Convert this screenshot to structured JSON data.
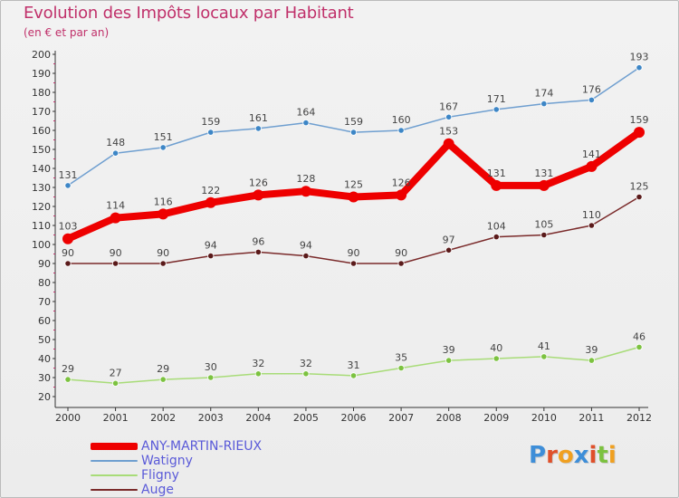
{
  "header": {
    "title": "Evolution des Impôts locaux par Habitant",
    "subtitle": "(en € et par an)"
  },
  "logo": {
    "letters": [
      "P",
      "r",
      "o",
      "x",
      "i",
      "t",
      "i"
    ],
    "colors": [
      "#3e8ed8",
      "#e0502a",
      "#f0a020",
      "#3e8ed8",
      "#e0502a",
      "#7cc240",
      "#f0a020"
    ]
  },
  "colors": {
    "axis": "#333333",
    "grid_tick": "#c0306a",
    "legend_text": "#5a5ad8"
  },
  "chart_data": {
    "type": "line",
    "title": "Evolution des Impôts locaux par Habitant",
    "subtitle": "(en € et par an)",
    "xlabel": "",
    "ylabel": "",
    "x": [
      2000,
      2001,
      2002,
      2003,
      2004,
      2005,
      2006,
      2007,
      2008,
      2009,
      2010,
      2011,
      2012
    ],
    "ylim": [
      20,
      200
    ],
    "yticks": [
      20,
      30,
      40,
      50,
      60,
      70,
      80,
      90,
      100,
      110,
      120,
      130,
      140,
      150,
      160,
      170,
      180,
      190,
      200
    ],
    "legend_position": "bottom-left",
    "series": [
      {
        "name": "ANY-MARTIN-RIEUX",
        "color": "#ee0000",
        "marker": "#ee0000",
        "width": "thick",
        "values": [
          103,
          114,
          116,
          122,
          126,
          128,
          125,
          126,
          153,
          131,
          131,
          141,
          159
        ]
      },
      {
        "name": "Watigny",
        "color": "#6f9fd0",
        "marker": "#3d86c6",
        "width": "thin",
        "values": [
          131,
          148,
          151,
          159,
          161,
          164,
          159,
          160,
          167,
          171,
          174,
          176,
          193
        ]
      },
      {
        "name": "Fligny",
        "color": "#a8dc78",
        "marker": "#7cc240",
        "width": "thin",
        "values": [
          29,
          27,
          29,
          30,
          32,
          32,
          31,
          35,
          39,
          40,
          41,
          39,
          46
        ]
      },
      {
        "name": "Auge",
        "color": "#7a2a2a",
        "marker": "#5a1a1a",
        "width": "thin",
        "values": [
          90,
          90,
          90,
          94,
          96,
          94,
          90,
          90,
          97,
          104,
          105,
          110,
          125
        ]
      }
    ]
  }
}
